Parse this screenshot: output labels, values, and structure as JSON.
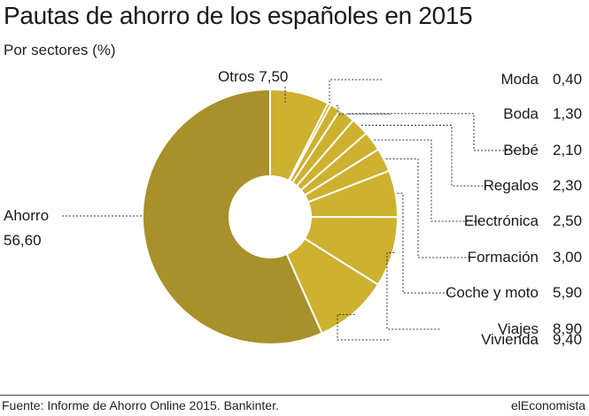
{
  "title": "Pautas de ahorro de los españoles en 2015",
  "subtitle": "Por sectores (%)",
  "footer": {
    "source": "Fuente: Informe de Ahorro Online 2015. Bankinter.",
    "brand": "elEconomista"
  },
  "colors": {
    "ahorro": "#a8902a",
    "others": "#cdb12f",
    "separator": "#ffffff",
    "leader": "#333333",
    "text": "#1a1a1a"
  },
  "chart_data": {
    "type": "pie",
    "donut": true,
    "title": "Pautas de ahorro de los españoles en 2015",
    "subtitle": "Por sectores (%)",
    "categories": [
      "Otros",
      "Moda",
      "Boda",
      "Bebé",
      "Regalos",
      "Electrónica",
      "Formación",
      "Coche y moto",
      "Viajes",
      "Vivienda",
      "Ahorro"
    ],
    "values": [
      7.5,
      0.4,
      1.3,
      2.1,
      2.3,
      2.5,
      3.0,
      5.9,
      8.9,
      9.4,
      56.6
    ],
    "value_labels": [
      "7,50",
      "0,40",
      "1,30",
      "2,10",
      "2,30",
      "2,50",
      "3,00",
      "5,90",
      "8,90",
      "9,40",
      "56,60"
    ],
    "unit": "%"
  }
}
